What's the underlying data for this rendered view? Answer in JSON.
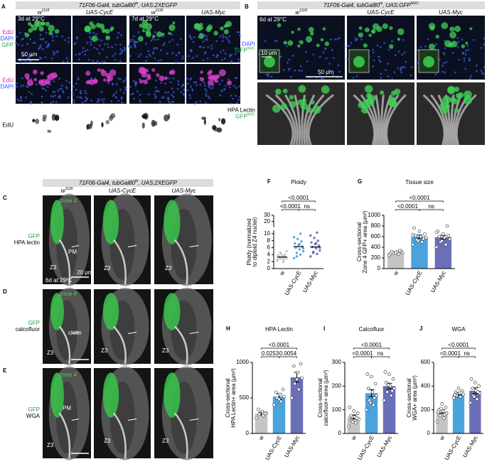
{
  "panel_a": {
    "letter": "A",
    "header": [
      "71F06-Gal4, tubGal80",
      "ts",
      ", UAS:2XEGFP"
    ],
    "columns": [
      [
        "w",
        "1118"
      ],
      [
        "UAS-CycE"
      ],
      [
        "w",
        "1118"
      ],
      [
        "UAS-Myc"
      ]
    ],
    "row_labels": [
      [
        [
          "EdU"
        ],
        [
          "DAPI"
        ],
        [
          "GFP"
        ]
      ],
      [
        [
          "EdU"
        ],
        [
          "DAPI"
        ]
      ],
      [
        [
          "EdU"
        ]
      ]
    ],
    "timepoints": [
      "3d at 29°C",
      "7d at 29°C"
    ],
    "scale_bar": "50 µm"
  },
  "panel_b": {
    "letter": "B",
    "header": [
      "71F06-Gal4, tubGal80",
      "ts",
      ", UAS:GFP",
      "NUC"
    ],
    "columns": [
      [
        "w",
        "1118"
      ],
      [
        "UAS-CycE"
      ],
      [
        "UAS-Myc"
      ]
    ],
    "row_labels": [
      [
        [
          "DAPI"
        ],
        [
          "GFP",
          "NUC"
        ]
      ],
      [
        [
          "HPA Lectin"
        ],
        [
          "GFP",
          "NUC"
        ]
      ]
    ],
    "annotations": [
      "6d at 29°C",
      "10 µm",
      "50 µm"
    ]
  },
  "panel_c": {
    "header": [
      "71F06-Gal4, tubGal80",
      "ts",
      ", UAS:2XEGFP"
    ],
    "columns": [
      [
        "w",
        "1118"
      ],
      [
        "UAS-CycE"
      ],
      [
        "UAS-Myc"
      ]
    ],
    "rows": [
      {
        "letter": "C",
        "labels": [
          [
            "GFP"
          ],
          [
            "HPA lectin"
          ]
        ],
        "annotations": [
          "zone 4",
          "PM",
          "Z3",
          "Z3",
          "Z3",
          "20 µm",
          "6d at 29ºC"
        ]
      },
      {
        "letter": "D",
        "labels": [
          [
            "GFP"
          ],
          [
            "calcofluor"
          ]
        ],
        "annotations": [
          "zone 4",
          "chitin",
          "Z3",
          "Z3",
          "Z3"
        ]
      },
      {
        "letter": "E",
        "labels": [
          [
            "GFP"
          ],
          [
            "WGA"
          ]
        ],
        "annotations": [
          "zone 4",
          "PM",
          "Z3",
          "Z3",
          "Z3"
        ]
      }
    ]
  },
  "chart_data": [
    {
      "type": "strip",
      "letter": "F",
      "title": "Ploidy",
      "ylabel": [
        "Ploidy (normalized",
        "to diploid Z4 nuclei)"
      ],
      "categories": [
        "w",
        "UAS-CycE",
        "UAS-Myc"
      ],
      "colors": [
        "#bdbdbd",
        "#3d9ad6",
        "#5b5fae"
      ],
      "values": [
        3.3,
        6.3,
        6.2
      ],
      "points": [
        [
          2.2,
          2.5,
          2.8,
          3.0,
          3.1,
          3.3,
          3.4,
          3.6,
          3.8,
          4.0,
          4.2,
          2.6,
          3.5,
          4.6,
          5.0,
          1.9
        ],
        [
          3.0,
          4.0,
          4.5,
          5.0,
          5.5,
          6.0,
          6.3,
          6.8,
          7.2,
          7.8,
          8.5,
          9.0,
          10.0,
          3.5,
          5.8,
          7.0
        ],
        [
          3.5,
          4.2,
          4.8,
          5.2,
          5.8,
          6.2,
          6.6,
          7.0,
          7.5,
          8.0,
          8.8,
          9.5,
          10.3,
          4.5,
          6.0,
          7.3
        ]
      ],
      "ylim": [
        0,
        30
      ],
      "axis_break": 11,
      "yticks": [
        0,
        2,
        4,
        6,
        8,
        10,
        20,
        30
      ],
      "comparisons": [
        {
          "label": "<0.0001",
          "pair": [
            "w",
            "UAS-Myc"
          ]
        },
        {
          "label": "<0.0001",
          "pair": [
            "w",
            "UAS-CycE"
          ]
        },
        {
          "label": "ns",
          "pair": [
            "UAS-CycE",
            "UAS-Myc"
          ]
        }
      ]
    },
    {
      "type": "bar",
      "letter": "G",
      "title": "Tissue size",
      "ylabel": [
        "Cross-sectional",
        "Zone 4 GFP+ area (µm²)"
      ],
      "categories": [
        "w",
        "UAS-CycE",
        "UAS-Myc"
      ],
      "colors": [
        "#c4c4c4",
        "#4aa3dc",
        "#6a6fb8"
      ],
      "values": [
        300,
        600,
        590
      ],
      "errors": [
        15,
        30,
        35
      ],
      "points": [
        [
          250,
          270,
          290,
          300,
          310,
          320,
          330,
          300,
          280,
          340
        ],
        [
          450,
          500,
          540,
          580,
          600,
          620,
          650,
          700,
          760,
          560,
          520,
          640
        ],
        [
          400,
          450,
          500,
          550,
          580,
          600,
          620,
          650,
          700,
          800,
          520,
          680
        ]
      ],
      "ylim": [
        0,
        1000
      ],
      "yticks": [
        0,
        200,
        400,
        600,
        800,
        1000
      ],
      "comparisons": [
        {
          "label": "<0.0001",
          "pair": [
            "w",
            "UAS-Myc"
          ]
        },
        {
          "label": "<0.0001",
          "pair": [
            "w",
            "UAS-CycE"
          ]
        },
        {
          "label": "ns",
          "pair": [
            "UAS-CycE",
            "UAS-Myc"
          ]
        }
      ]
    },
    {
      "type": "bar",
      "letter": "H",
      "title": "HPA Lectin",
      "ylabel": [
        "Cross-sectional",
        "HPA Lectin+ area (µm²)"
      ],
      "categories": [
        "w",
        "UAS-CycE",
        "UAS-Myc"
      ],
      "colors": [
        "#c4c4c4",
        "#4aa3dc",
        "#6a6fb8"
      ],
      "values": [
        280,
        520,
        790
      ],
      "errors": [
        20,
        40,
        70
      ],
      "points": [
        [
          220,
          250,
          270,
          290,
          310,
          340,
          280
        ],
        [
          400,
          450,
          500,
          520,
          550,
          580,
          620,
          480
        ],
        [
          500,
          620,
          700,
          780,
          860,
          950,
          980,
          760
        ]
      ],
      "ylim": [
        0,
        1000
      ],
      "yticks": [
        0,
        500,
        1000
      ],
      "comparisons": [
        {
          "label": "<0.0001",
          "pair": [
            "w",
            "UAS-Myc"
          ]
        },
        {
          "label": "0.0253",
          "pair": [
            "w",
            "UAS-CycE"
          ]
        },
        {
          "label": "0.0054",
          "pair": [
            "UAS-CycE",
            "UAS-Myc"
          ]
        }
      ]
    },
    {
      "type": "bar",
      "letter": "I",
      "title": "Calcofluor",
      "ylabel": [
        "Cross-sectional",
        "calcofluor+ area (µm²)"
      ],
      "categories": [
        "w",
        "UAS-CycE",
        "UAS-Myc"
      ],
      "colors": [
        "#c4c4c4",
        "#4aa3dc",
        "#6a6fb8"
      ],
      "values": [
        70,
        170,
        200
      ],
      "errors": [
        8,
        15,
        12
      ],
      "points": [
        [
          30,
          45,
          55,
          60,
          70,
          75,
          85,
          95,
          110,
          65,
          50
        ],
        [
          100,
          120,
          140,
          160,
          175,
          190,
          210,
          240,
          250,
          150,
          130
        ],
        [
          140,
          160,
          175,
          190,
          200,
          215,
          230,
          250,
          260,
          180,
          205
        ]
      ],
      "ylim": [
        0,
        300
      ],
      "yticks": [
        0,
        100,
        200,
        300
      ],
      "comparisons": [
        {
          "label": "<0.0001",
          "pair": [
            "w",
            "UAS-Myc"
          ]
        },
        {
          "label": "<0.0001",
          "pair": [
            "w",
            "UAS-CycE"
          ]
        },
        {
          "label": "ns",
          "pair": [
            "UAS-CycE",
            "UAS-Myc"
          ]
        }
      ]
    },
    {
      "type": "bar",
      "letter": "J",
      "title": "WGA",
      "ylabel": [
        "Cross-sectional",
        "WGA+ area (µm²)"
      ],
      "categories": [
        "w",
        "UAS-CycE",
        "UAS-Myc"
      ],
      "colors": [
        "#c4c4c4",
        "#4aa3dc",
        "#6a6fb8"
      ],
      "values": [
        185,
        335,
        360
      ],
      "errors": [
        15,
        10,
        25
      ],
      "points": [
        [
          100,
          130,
          150,
          170,
          190,
          200,
          220,
          250,
          180,
          160,
          210
        ],
        [
          300,
          310,
          320,
          330,
          340,
          350,
          360,
          380,
          325,
          345
        ],
        [
          260,
          290,
          320,
          340,
          360,
          380,
          400,
          430,
          460,
          350,
          310
        ]
      ],
      "ylim": [
        0,
        600
      ],
      "yticks": [
        0,
        200,
        400,
        600
      ],
      "comparisons": [
        {
          "label": "<0.0001",
          "pair": [
            "w",
            "UAS-Myc"
          ]
        },
        {
          "label": "<0.0001",
          "pair": [
            "w",
            "UAS-CycE"
          ]
        },
        {
          "label": "ns",
          "pair": [
            "UAS-CycE",
            "UAS-Myc"
          ]
        }
      ]
    }
  ]
}
